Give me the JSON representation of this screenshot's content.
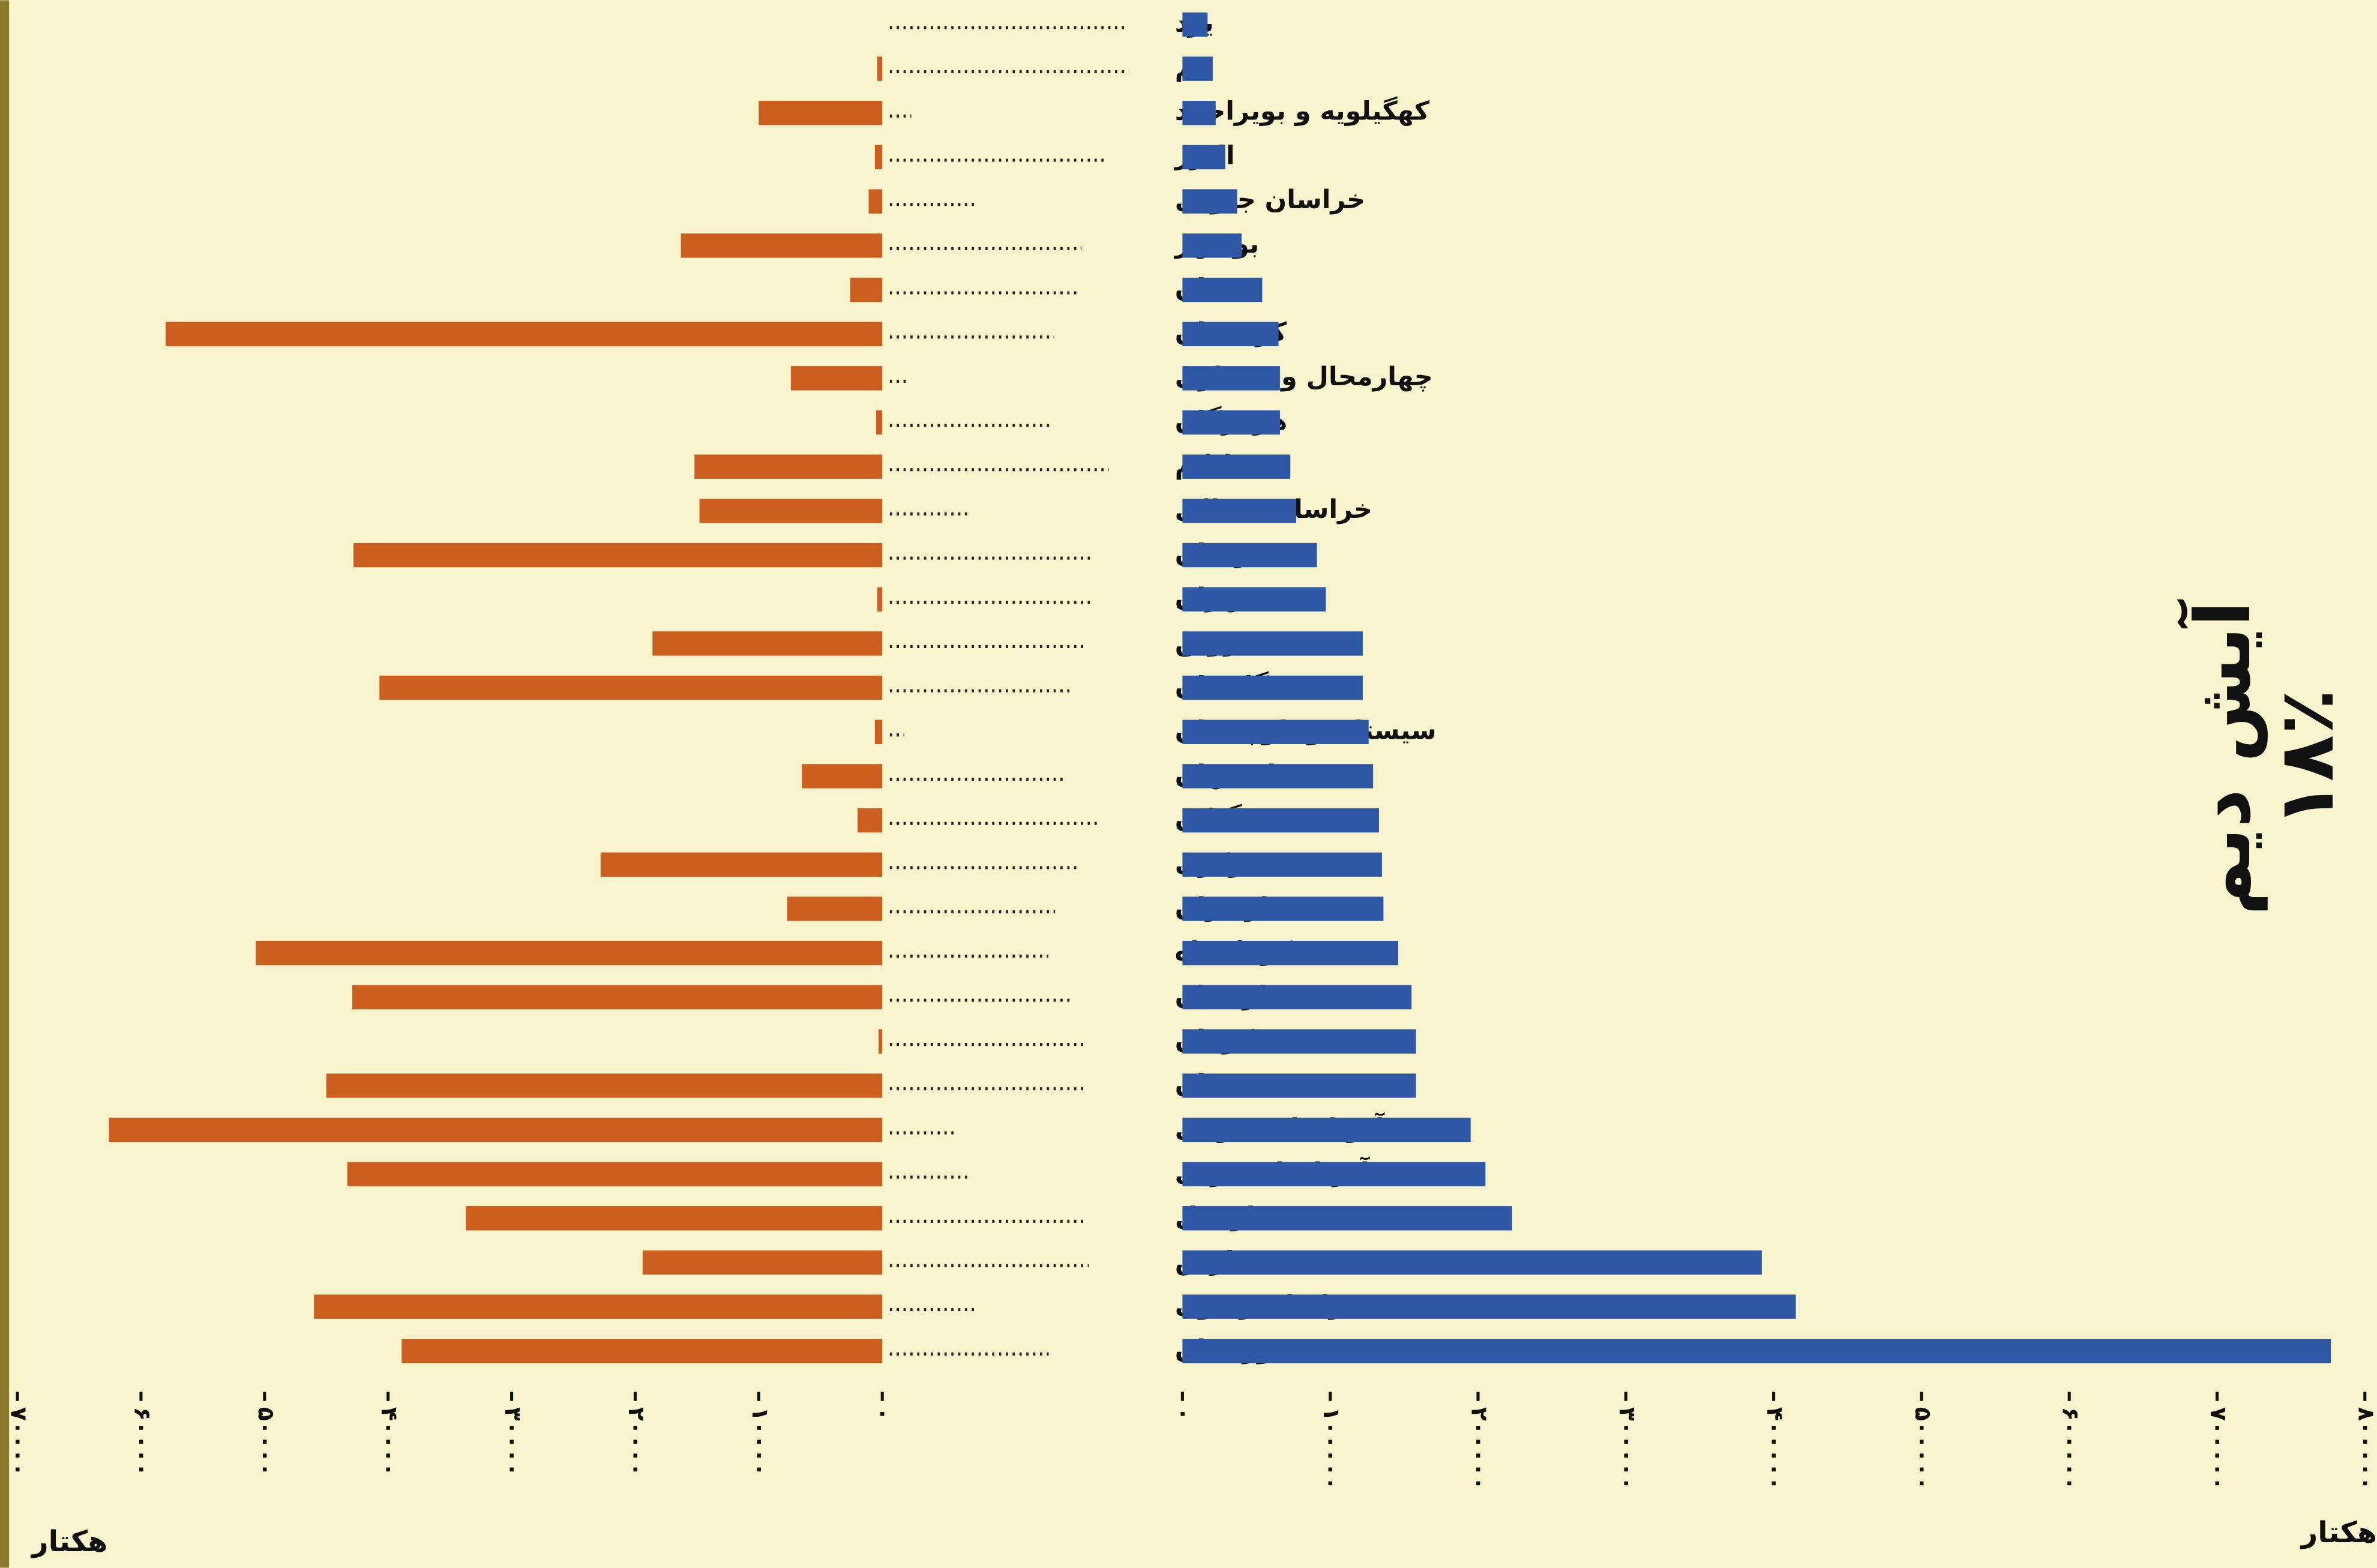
{
  "chart_data": {
    "type": "butterfly",
    "categories": [
      "یزد",
      "قم",
      "کهگیلویه و بویراحمد",
      "البرز",
      "خراسان جنوبی",
      "بوشهر",
      "سمنان",
      "کردستان",
      "چهارمحال و بختیاری",
      "هرمزگان",
      "ایلام",
      "خراسان شمالی",
      "زنجان",
      "تهران",
      "قزوین",
      "گلستان",
      "سیستان و بلوچستان",
      "اصفهان",
      "گیلان",
      "مرکزی",
      "مازندران",
      "کرمانشاه",
      "لرستان",
      "کرمان",
      "همدان",
      "آذربایجان شرقی",
      "آذربایجان غربی",
      "اردبیل",
      "فارس",
      "خراسان رضوی",
      "خوزستان"
    ],
    "series": [
      {
        "color": "#cc5f1f",
        "side": "left",
        "values": [
          0,
          400,
          10000,
          600,
          1100,
          16300,
          2600,
          58000,
          7400,
          500,
          15200,
          14800,
          42800,
          400,
          18600,
          40700,
          600,
          6500,
          2000,
          22800,
          7700,
          50700,
          42900,
          300,
          45000,
          62600,
          43300,
          33700,
          19400,
          46000,
          38900
        ],
        "xlim": [
          0,
          70000
        ],
        "xticks": [
          {
            "value": 0,
            "label": "۰"
          },
          {
            "value": 10000,
            "label": "۱۰۰۰۰"
          },
          {
            "value": 20000,
            "label": "۲۰۰۰۰"
          },
          {
            "value": 30000,
            "label": "۳۰۰۰۰"
          },
          {
            "value": 40000,
            "label": "۴۰۰۰۰"
          },
          {
            "value": 50000,
            "label": "۵۰۰۰۰"
          },
          {
            "value": 60000,
            "label": "۶۰۰۰۰"
          },
          {
            "value": 70000,
            "label": "۷۰۰۰۰"
          }
        ],
        "unit": "هکتار"
      },
      {
        "color": "#2e58a6",
        "side": "right",
        "values": [
          17000,
          20500,
          22500,
          29000,
          37000,
          40000,
          54000,
          65000,
          66000,
          66000,
          73000,
          77000,
          91000,
          97000,
          122000,
          122000,
          126000,
          129000,
          133000,
          135000,
          136000,
          146000,
          155000,
          158000,
          158000,
          195000,
          205000,
          223000,
          392000,
          415000,
          777000
        ],
        "xlim": [
          0,
          800000
        ],
        "xticks": [
          {
            "value": 0,
            "label": "۰"
          },
          {
            "value": 100000,
            "label": "۱۰۰۰۰۰"
          },
          {
            "value": 200000,
            "label": "۲۰۰۰۰۰"
          },
          {
            "value": 300000,
            "label": "۳۰۰۰۰۰"
          },
          {
            "value": 400000,
            "label": "۴۰۰۰۰۰"
          },
          {
            "value": 500000,
            "label": "۵۰۰۰۰۰"
          },
          {
            "value": 600000,
            "label": "۶۰۰۰۰۰"
          },
          {
            "value": 700000,
            "label": "۷۰۰۰۰۰"
          },
          {
            "value": 800000,
            "label": "۸۰۰۰۰۰"
          }
        ],
        "unit": "هکتار"
      }
    ],
    "annotation": "آیش دیم",
    "annotation_value": "۱۸٪"
  }
}
